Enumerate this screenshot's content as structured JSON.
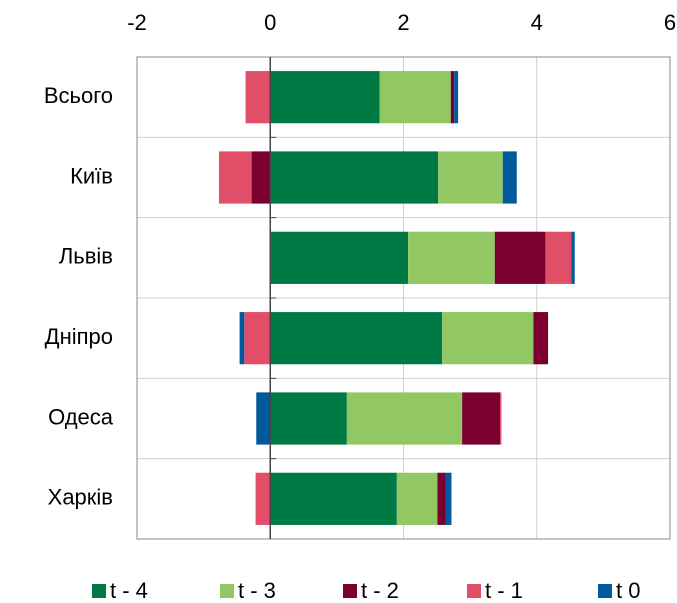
{
  "chart_data": {
    "type": "bar",
    "orientation": "horizontal",
    "stacked": true,
    "categories": [
      "Всього",
      "Київ",
      "Львів",
      "Дніпро",
      "Одеса",
      "Харків"
    ],
    "series": [
      {
        "name": "t - 4",
        "color": "#007a45",
        "values": [
          1.64,
          2.52,
          2.07,
          2.58,
          1.15,
          1.9
        ]
      },
      {
        "name": "t - 3",
        "color": "#92c864",
        "values": [
          1.07,
          0.97,
          1.3,
          1.37,
          1.73,
          0.61
        ]
      },
      {
        "name": "t - 2",
        "color": "#7a0030",
        "values": [
          0.05,
          -0.28,
          0.76,
          0.22,
          0.57,
          0.12
        ]
      },
      {
        "name": "t - 1",
        "color": "#e04e68",
        "values": [
          -0.37,
          -0.49,
          0.39,
          -0.39,
          0.02,
          -0.22
        ]
      },
      {
        "name": "t 0",
        "color": "#005a9c",
        "values": [
          0.06,
          0.21,
          0.05,
          -0.07,
          -0.21,
          0.09
        ]
      }
    ],
    "xlim": [
      -2,
      6
    ],
    "xticks": [
      -2,
      0,
      2,
      4,
      6
    ],
    "grid": true,
    "legend": "bottom"
  }
}
